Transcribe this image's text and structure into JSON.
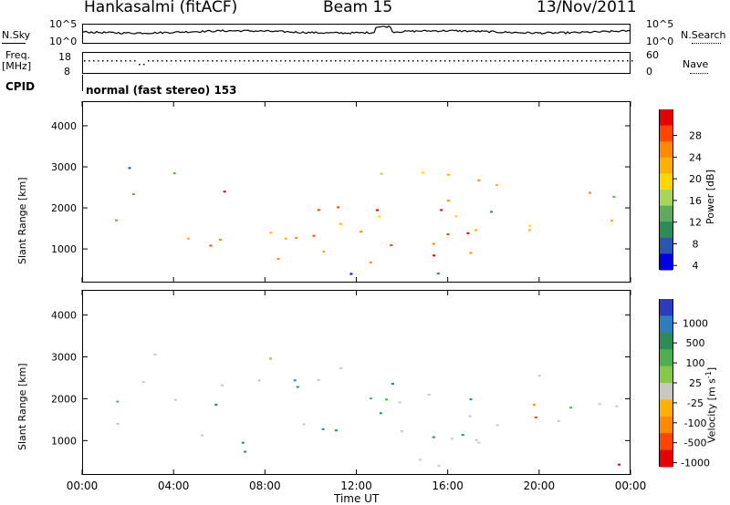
{
  "header": {
    "station": "Hankasalmi (fitACF)",
    "beam": "Beam 15",
    "date": "13/Nov/2011"
  },
  "noise_panel": {
    "left_label": "N.Sky",
    "left_ticks": [
      "10^5",
      "10^0"
    ],
    "right_ticks": [
      "10^5",
      "10^0"
    ],
    "right_label": "N.Search"
  },
  "freq_panel": {
    "left_label_1": "Freq.",
    "left_label_2": "[MHz]",
    "left_ticks": [
      "18",
      "8"
    ],
    "right_ticks": [
      "60",
      "0"
    ],
    "right_label": "Nave"
  },
  "cpid": {
    "label": "CPID",
    "text": "normal (fast stereo) 153"
  },
  "x_axis": {
    "ticks": [
      "00:00",
      "04:00",
      "08:00",
      "12:00",
      "16:00",
      "20:00",
      "00:00"
    ],
    "label": "Time UT"
  },
  "chart_data": [
    {
      "type": "heatmap",
      "panel": "power",
      "ylabel": "Slant Range [km]",
      "yticks": [
        1000,
        2000,
        3000,
        4000
      ],
      "xticks_hours": [
        0,
        4,
        8,
        12,
        16,
        20,
        24
      ],
      "ylim": [
        180,
        4600
      ],
      "xlim_hours": [
        0,
        24
      ],
      "colorbar": {
        "label": "Power [dB]",
        "ticks": [
          "28",
          "24",
          "20",
          "16",
          "12",
          "8",
          "4"
        ],
        "colors": [
          "#e80000",
          "#ff4500",
          "#ff8a00",
          "#ffb000",
          "#ffd700",
          "#a8d65a",
          "#5faa5f",
          "#2e8b57",
          "#2a55b0",
          "#0000e0"
        ]
      }
    },
    {
      "type": "heatmap",
      "panel": "velocity",
      "ylabel": "Slant Range [km]",
      "yticks": [
        1000,
        2000,
        3000,
        4000
      ],
      "xticks_hours": [
        0,
        4,
        8,
        12,
        16,
        20,
        24
      ],
      "ylim": [
        180,
        4600
      ],
      "xlim_hours": [
        0,
        24
      ],
      "colorbar": {
        "label": "Velocity [m s^-1]",
        "ticks": [
          "1000",
          "500",
          "100",
          "25",
          "-25",
          "-100",
          "-500",
          "-1000"
        ],
        "colors": [
          "#2a3cc0",
          "#2e7dbf",
          "#2e8b57",
          "#4fae4f",
          "#86c94a",
          "#c8c8c0",
          "#ffb000",
          "#ff8a00",
          "#ff4500",
          "#e80000"
        ]
      }
    }
  ]
}
